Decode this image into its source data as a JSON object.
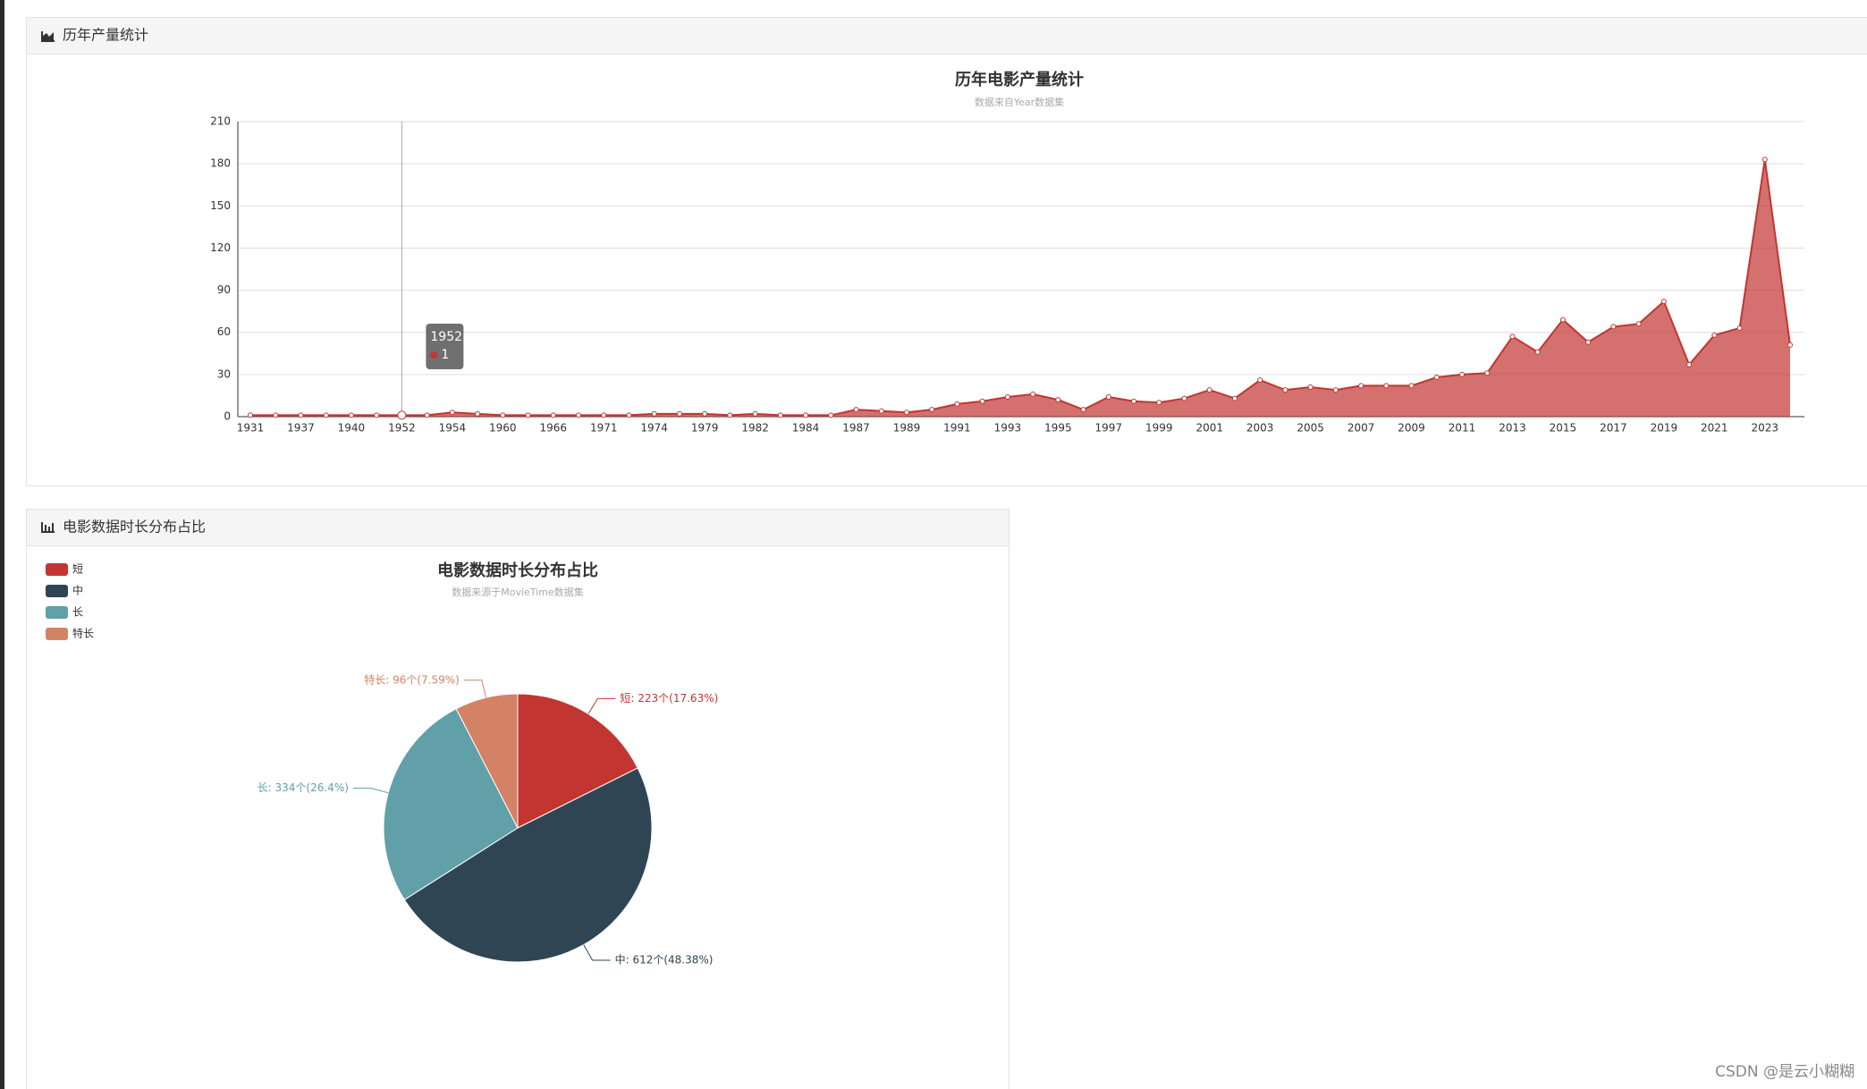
{
  "panels": [
    "历年产量统计",
    "电影数据时长分布占比"
  ],
  "watermark": "CSDN @是云小糊糊",
  "chart_data": [
    {
      "type": "area",
      "title": "历年电影产量统计",
      "subtitle": "数据来自Year数据集",
      "categories": [
        "1931",
        null,
        "1937",
        null,
        "1940",
        null,
        "1952",
        null,
        "1954",
        null,
        "1960",
        null,
        "1966",
        null,
        "1971",
        null,
        "1974",
        null,
        "1979",
        null,
        "1982",
        null,
        "1984",
        null,
        "1987",
        null,
        "1989",
        null,
        "1991",
        null,
        "1993",
        null,
        "1995",
        null,
        "1997",
        null,
        "1999",
        null,
        "2001",
        null,
        "2003",
        null,
        "2005",
        null,
        "2007",
        null,
        "2009",
        null,
        "2011",
        null,
        "2013",
        null,
        "2015",
        null,
        "2017",
        null,
        "2019",
        null,
        "2021",
        null,
        "2023",
        null
      ],
      "values": [
        1,
        1,
        1,
        1,
        1,
        1,
        1,
        1,
        3,
        2,
        1,
        1,
        1,
        1,
        1,
        1,
        2,
        2,
        2,
        1,
        2,
        1,
        1,
        1,
        5,
        4,
        3,
        5,
        9,
        11,
        14,
        16,
        12,
        5,
        14,
        11,
        10,
        13,
        19,
        13,
        26,
        19,
        21,
        19,
        22,
        22,
        22,
        28,
        30,
        31,
        57,
        46,
        69,
        53,
        64,
        66,
        82,
        37,
        58,
        63,
        183,
        51
      ],
      "color": "#c23531",
      "ylim": [
        0,
        210
      ],
      "yticks": [
        0,
        30,
        60,
        90,
        120,
        150,
        180,
        210
      ],
      "grid": true
    },
    {
      "type": "pie",
      "title": "电影数据时长分布占比",
      "subtitle": "数据来源于MovieTime数据集",
      "categories": [
        "短",
        "中",
        "长",
        "特长"
      ],
      "values": [
        223,
        612,
        334,
        96
      ],
      "value_labels": [
        "短: 223个(17.63%)",
        "中: 612个(48.38%)",
        "长: 334个(26.4%)",
        "特长: 96个(7.59%)"
      ],
      "colors": [
        "#c23531",
        "#2f4554",
        "#61a0a8",
        "#d48265"
      ],
      "legend": "top-left"
    }
  ]
}
